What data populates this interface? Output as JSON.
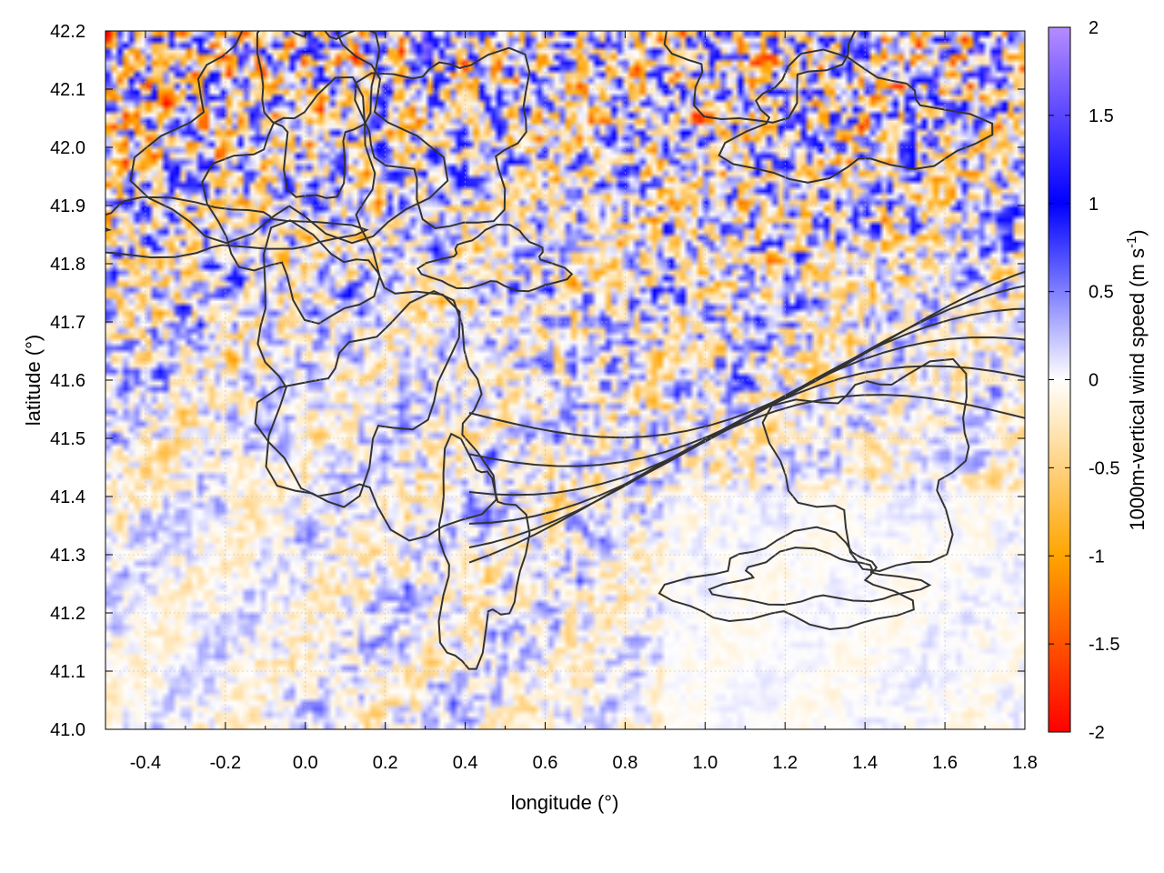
{
  "chart_data": {
    "type": "heatmap",
    "xlabel": "longitude (°)",
    "ylabel": "latitude (°)",
    "colorbar_label": "1000m-vertical wind speed (m s",
    "colorbar_label_exp": "-1",
    "colorbar_label_close": ")",
    "xlim": [
      -0.5,
      1.8
    ],
    "ylim": [
      41.0,
      42.2
    ],
    "x_ticks": [
      -0.4,
      -0.2,
      0.0,
      0.2,
      0.4,
      0.6,
      0.8,
      1.0,
      1.2,
      1.4,
      1.6,
      1.8
    ],
    "x_tick_labels": [
      "-0.4",
      "-0.2",
      "0.0",
      "0.2",
      "0.4",
      "0.6",
      "0.8",
      "1.0",
      "1.2",
      "1.4",
      "1.6",
      "1.8"
    ],
    "y_ticks": [
      41.0,
      41.1,
      41.2,
      41.3,
      41.4,
      41.5,
      41.6,
      41.7,
      41.8,
      41.9,
      42.0,
      42.1,
      42.2
    ],
    "y_tick_labels": [
      "41.0",
      "41.1",
      "41.2",
      "41.3",
      "41.4",
      "41.5",
      "41.6",
      "41.7",
      "41.8",
      "41.9",
      "42.0",
      "42.1",
      "42.2"
    ],
    "color_range": [
      -2,
      2
    ],
    "colorbar_ticks": [
      2,
      1.5,
      1,
      0.5,
      0,
      -0.5,
      -1,
      -1.5,
      -2
    ],
    "colorbar_tick_labels": [
      "2",
      "1.5",
      "1",
      "0.5",
      "0",
      "-0.5",
      "-1",
      "-1.5",
      "-2"
    ],
    "colormap": [
      {
        "value": -2,
        "color": "#ff0000"
      },
      {
        "value": -1,
        "color": "#ffa500"
      },
      {
        "value": 0,
        "color": "#ffffff"
      },
      {
        "value": 1,
        "color": "#0000ff"
      },
      {
        "value": 2,
        "color": "#b58cff"
      }
    ],
    "grid": true,
    "contour_color": "#333333"
  }
}
